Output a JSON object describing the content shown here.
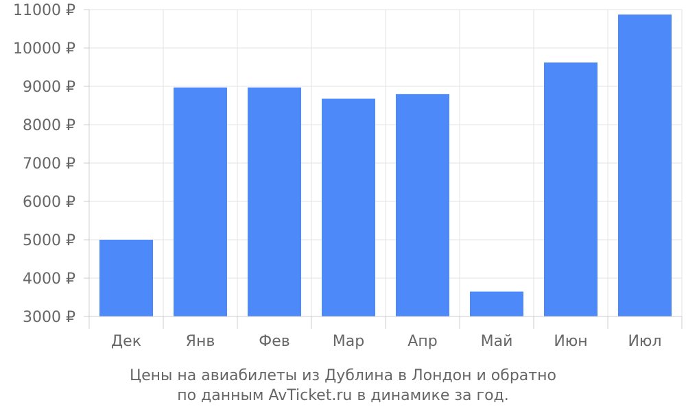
{
  "chart_data": {
    "type": "bar",
    "title": "",
    "xlabel": "",
    "ylabel": "",
    "categories": [
      "Дек",
      "Янв",
      "Фев",
      "Мар",
      "Апр",
      "Май",
      "Июн",
      "Июл"
    ],
    "values": [
      5000,
      8970,
      8970,
      8680,
      8800,
      3650,
      9620,
      10870
    ],
    "ylim": [
      3000,
      11000
    ],
    "yticks": [
      3000,
      4000,
      5000,
      6000,
      7000,
      8000,
      9000,
      10000,
      11000
    ],
    "ytick_labels": [
      "3000 ₽",
      "4000 ₽",
      "5000 ₽",
      "6000 ₽",
      "7000 ₽",
      "8000 ₽",
      "9000 ₽",
      "10000 ₽",
      "11000 ₽"
    ],
    "grid": true,
    "bar_color": "#4d89f9",
    "caption": [
      "Цены на авиабилеты из Дублина в Лондон и обратно",
      "по данным AvTicket.ru в динамике за год."
    ]
  }
}
